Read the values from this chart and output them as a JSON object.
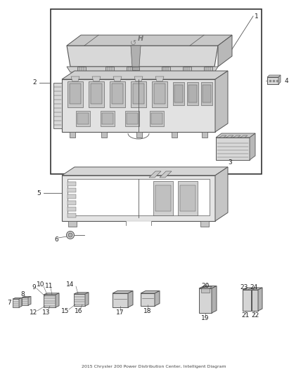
{
  "bg_color": "#ffffff",
  "fig_width": 4.38,
  "fig_height": 5.33,
  "dpi": 100,
  "line_color": "#555555",
  "text_color": "#222222",
  "font_size": 6.5,
  "border": [
    72,
    285,
    298,
    235
  ],
  "labels": {
    "1": [
      363,
      510,
      365,
      510
    ],
    "2": [
      52,
      415,
      52,
      415
    ],
    "3": [
      323,
      309,
      323,
      309
    ],
    "4": [
      405,
      415,
      405,
      415
    ],
    "5": [
      58,
      258,
      58,
      258
    ],
    "6": [
      83,
      198,
      83,
      198
    ]
  }
}
